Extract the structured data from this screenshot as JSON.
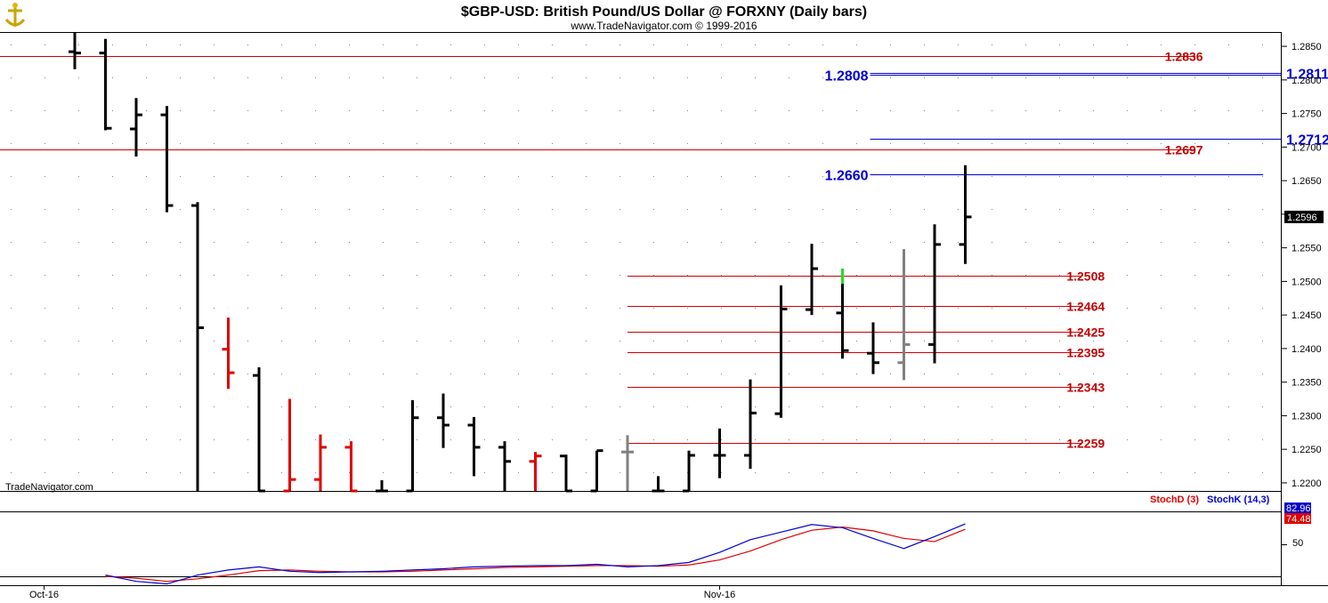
{
  "chart_data": {
    "type": "ohlc",
    "title": "$GBP-USD:  British Pound/US Dollar @ FORXNY  (Daily bars)",
    "subtitle": "www.TradeNavigator.com © 1999-2016",
    "watermark": "TradeNavigator.com",
    "y_ticks": [
      "1.2850",
      "1.2800",
      "1.2750",
      "1.2700",
      "1.2650",
      "1.2600",
      "1.2550",
      "1.2500",
      "1.2450",
      "1.2400",
      "1.2350",
      "1.2300",
      "1.2250",
      "1.2200"
    ],
    "ylim": [
      1.2188,
      1.287
    ],
    "x_labels": [
      {
        "label": "Oct-16",
        "bar": -1
      },
      {
        "label": "Nov-16",
        "bar": 21
      }
    ],
    "last_price": "1.2596",
    "bars": [
      {
        "o": 1.2842,
        "h": 1.2874,
        "l": 1.2816,
        "c": 1.284,
        "color": "black"
      },
      {
        "o": 1.284,
        "h": 1.2861,
        "l": 1.2725,
        "c": 1.2728,
        "color": "black"
      },
      {
        "o": 1.2727,
        "h": 1.2773,
        "l": 1.2686,
        "c": 1.2748,
        "color": "black"
      },
      {
        "o": 1.2748,
        "h": 1.2761,
        "l": 1.2603,
        "c": 1.2613,
        "color": "black"
      },
      {
        "o": 1.2613,
        "h": 1.2618,
        "l": 1.2188,
        "c": 1.2431,
        "color": "black"
      },
      {
        "o": 1.2399,
        "h": 1.2446,
        "l": 1.234,
        "c": 1.2364,
        "color": "red"
      },
      {
        "o": 1.236,
        "h": 1.2372,
        "l": 1.2188,
        "c": 1.2188,
        "color": "black"
      },
      {
        "o": 1.2188,
        "h": 1.2325,
        "l": 1.2188,
        "c": 1.2205,
        "color": "red"
      },
      {
        "o": 1.2205,
        "h": 1.2272,
        "l": 1.2188,
        "c": 1.2253,
        "color": "red"
      },
      {
        "o": 1.2253,
        "h": 1.2262,
        "l": 1.2188,
        "c": 1.2188,
        "color": "red"
      },
      {
        "o": 1.2188,
        "h": 1.2204,
        "l": 1.2188,
        "c": 1.2188,
        "color": "black"
      },
      {
        "o": 1.2188,
        "h": 1.2323,
        "l": 1.2188,
        "c": 1.2297,
        "color": "black"
      },
      {
        "o": 1.2297,
        "h": 1.2333,
        "l": 1.2252,
        "c": 1.2286,
        "color": "black"
      },
      {
        "o": 1.2286,
        "h": 1.2298,
        "l": 1.221,
        "c": 1.2253,
        "color": "black"
      },
      {
        "o": 1.2253,
        "h": 1.2262,
        "l": 1.2188,
        "c": 1.2232,
        "color": "black"
      },
      {
        "o": 1.2232,
        "h": 1.2246,
        "l": 1.2188,
        "c": 1.224,
        "color": "red"
      },
      {
        "o": 1.224,
        "h": 1.2242,
        "l": 1.2188,
        "c": 1.2188,
        "color": "black"
      },
      {
        "o": 1.2188,
        "h": 1.2248,
        "l": 1.2188,
        "c": 1.2248,
        "color": "black"
      },
      {
        "o": 1.2246,
        "h": 1.2271,
        "l": 1.2188,
        "c": 1.2246,
        "color": "gray"
      },
      {
        "o": 1.2188,
        "h": 1.221,
        "l": 1.2188,
        "c": 1.2188,
        "color": "black"
      },
      {
        "o": 1.2188,
        "h": 1.2248,
        "l": 1.2188,
        "c": 1.2241,
        "color": "black"
      },
      {
        "o": 1.2241,
        "h": 1.2281,
        "l": 1.2207,
        "c": 1.2241,
        "color": "black"
      },
      {
        "o": 1.2241,
        "h": 1.2354,
        "l": 1.2221,
        "c": 1.2304,
        "color": "black"
      },
      {
        "o": 1.2303,
        "h": 1.2494,
        "l": 1.2297,
        "c": 1.2459,
        "color": "black"
      },
      {
        "o": 1.2458,
        "h": 1.2556,
        "l": 1.245,
        "c": 1.2519,
        "color": "black"
      },
      {
        "o": 1.2453,
        "h": 1.2519,
        "l": 1.2385,
        "c": 1.2397,
        "color": "black",
        "top_accent": "green"
      },
      {
        "o": 1.2393,
        "h": 1.2439,
        "l": 1.2362,
        "c": 1.2379,
        "color": "black"
      },
      {
        "o": 1.2379,
        "h": 1.2548,
        "l": 1.2353,
        "c": 1.2406,
        "color": "gray"
      },
      {
        "o": 1.2406,
        "h": 1.2585,
        "l": 1.2378,
        "c": 1.2555,
        "color": "black"
      },
      {
        "o": 1.2555,
        "h": 1.2673,
        "l": 1.2526,
        "c": 1.2596,
        "color": "black"
      }
    ],
    "levels": [
      {
        "label": "1.2836",
        "value": 1.2836,
        "color": "red",
        "x0": -3,
        "x1": 36.5,
        "label_at": 35.5
      },
      {
        "label": "1.2697",
        "value": 1.2697,
        "color": "red",
        "x0": -3,
        "x1": 36.5,
        "label_at": 35.5
      },
      {
        "label": "1.2508",
        "value": 1.2508,
        "color": "red",
        "x0": 18,
        "x1": 32.8,
        "label_at": 32.3
      },
      {
        "label": "1.2464",
        "value": 1.2464,
        "color": "red",
        "x0": 18,
        "x1": 32.8,
        "label_at": 32.3
      },
      {
        "label": "1.2425",
        "value": 1.2425,
        "color": "red",
        "x0": 18,
        "x1": 32.8,
        "label_at": 32.3
      },
      {
        "label": "1.2395",
        "value": 1.2395,
        "color": "red",
        "x0": 18,
        "x1": 32.8,
        "label_at": 32.3
      },
      {
        "label": "1.2343",
        "value": 1.2343,
        "color": "red",
        "x0": 18,
        "x1": 32.8,
        "label_at": 32.3
      },
      {
        "label": "1.2259",
        "value": 1.2259,
        "color": "red",
        "x0": 18,
        "x1": 32.8,
        "label_at": 32.3
      }
    ],
    "blue_levels": [
      {
        "label": "1.2811",
        "value": 1.2811,
        "x0": 25.9,
        "x1": 39.6,
        "side": "right"
      },
      {
        "label": "1.2808",
        "value": 1.2808,
        "x0": 25.9,
        "x1": 39.6,
        "side": "left"
      },
      {
        "label": "1.2712",
        "value": 1.2712,
        "x0": 25.9,
        "x1": 39.6,
        "side": "right"
      },
      {
        "label": "1.2660",
        "value": 1.266,
        "x0": 25.9,
        "x1": 38.7,
        "side": "left"
      }
    ],
    "stoch": {
      "legend": [
        {
          "name": "StochD (3)",
          "color": "#e00000"
        },
        {
          "name": "StochK (14,3)",
          "color": "#0000d0"
        }
      ],
      "ylim": [
        0,
        100
      ],
      "y_ticks": [
        "50"
      ],
      "last_values": {
        "k": "82.96",
        "d": "74.48"
      },
      "k": [
        null,
        2,
        -8,
        -12,
        2,
        10,
        15,
        8,
        6,
        7,
        8,
        10,
        12,
        15,
        16,
        17,
        17,
        19,
        15,
        17,
        22,
        38,
        58,
        70,
        82,
        77,
        60,
        44,
        63,
        82.96
      ],
      "d": [
        null,
        0,
        -3,
        -8,
        -4,
        2,
        9,
        10,
        8,
        7,
        7,
        8,
        10,
        12,
        14,
        15,
        16,
        17,
        17,
        16,
        18,
        26,
        40,
        58,
        73,
        78,
        72,
        60,
        55,
        74.48
      ]
    }
  }
}
